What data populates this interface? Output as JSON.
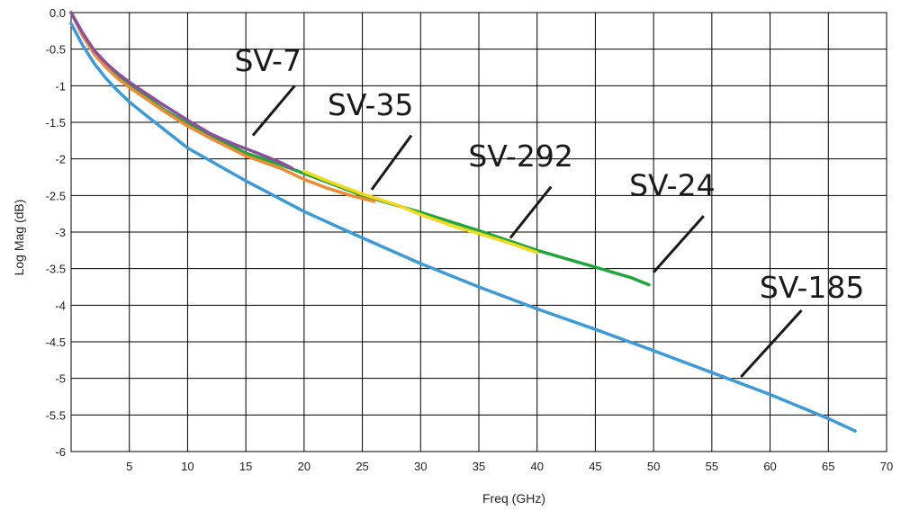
{
  "chart_data": {
    "type": "line",
    "title": "",
    "xlabel": "Freq (GHz)",
    "ylabel": "Log Mag (dB)",
    "xlim": [
      0,
      70
    ],
    "ylim": [
      -6,
      0
    ],
    "grid": true,
    "x_ticks": [
      5,
      10,
      15,
      20,
      25,
      30,
      35,
      40,
      45,
      50,
      55,
      60,
      65,
      70
    ],
    "x_tick_labels": [
      "5",
      "10",
      "15",
      "20",
      "25",
      "30",
      "35",
      "40",
      "45",
      "50",
      "55",
      "60",
      "65",
      "70"
    ],
    "y_ticks": [
      0,
      -0.5,
      -1,
      -1.5,
      -2,
      -2.5,
      -3,
      -3.5,
      -4,
      -4.5,
      -5,
      -5.5,
      -6
    ],
    "y_tick_labels": [
      "0.0",
      "-0.5",
      "-1",
      "-1.5",
      "-2",
      "-2.5",
      "-3",
      "-3.5",
      "-4",
      "-4.5",
      "-5",
      "-5.5",
      "-6"
    ],
    "series": [
      {
        "name": "SV-185",
        "color": "#3d9ad9",
        "x": [
          0,
          1,
          2,
          3,
          4,
          5,
          6,
          8,
          10,
          12,
          15,
          20,
          25,
          30,
          35,
          40,
          45,
          50,
          55,
          60,
          65,
          67.3
        ],
        "y": [
          -0.15,
          -0.45,
          -0.7,
          -0.9,
          -1.07,
          -1.22,
          -1.35,
          -1.6,
          -1.85,
          -2.03,
          -2.3,
          -2.72,
          -3.08,
          -3.43,
          -3.75,
          -4.05,
          -4.33,
          -4.62,
          -4.92,
          -5.22,
          -5.55,
          -5.72
        ]
      },
      {
        "name": "SV-24",
        "color": "#1fa53a",
        "x": [
          0,
          1,
          2,
          3,
          4,
          5,
          6,
          8,
          10,
          12,
          15,
          18,
          20,
          25,
          30,
          35,
          40,
          45,
          48,
          49.6
        ],
        "y": [
          0,
          -0.3,
          -0.55,
          -0.72,
          -0.87,
          -0.99,
          -1.1,
          -1.33,
          -1.52,
          -1.68,
          -1.92,
          -2.08,
          -2.2,
          -2.5,
          -2.73,
          -2.98,
          -3.25,
          -3.48,
          -3.62,
          -3.72
        ]
      },
      {
        "name": "SV-292",
        "color": "#f2d91f",
        "x": [
          20,
          22,
          25,
          28,
          30,
          33,
          35,
          38,
          40
        ],
        "y": [
          -2.17,
          -2.3,
          -2.48,
          -2.63,
          -2.76,
          -2.93,
          -3.02,
          -3.17,
          -3.28
        ]
      },
      {
        "name": "SV-35",
        "color": "#f08b35",
        "x": [
          0,
          1,
          2,
          3,
          4,
          5,
          6,
          8,
          10,
          12,
          15,
          18,
          20,
          22,
          24,
          26
        ],
        "y": [
          0,
          -0.32,
          -0.57,
          -0.75,
          -0.9,
          -1.02,
          -1.13,
          -1.35,
          -1.55,
          -1.72,
          -1.96,
          -2.13,
          -2.28,
          -2.4,
          -2.5,
          -2.58
        ]
      },
      {
        "name": "SV-7",
        "color": "#8b4fa0",
        "x": [
          0,
          1,
          2,
          3,
          4,
          5,
          6,
          8,
          10,
          12,
          14,
          16,
          18,
          19
        ],
        "y": [
          0,
          -0.28,
          -0.52,
          -0.69,
          -0.83,
          -0.95,
          -1.06,
          -1.27,
          -1.47,
          -1.66,
          -1.8,
          -1.92,
          -2.05,
          -2.13
        ]
      }
    ],
    "annotations": [
      {
        "label": "SV-7",
        "text_x": 16.9,
        "text_y": -0.8,
        "line_from": [
          19.2,
          -1.0
        ],
        "line_to": [
          15.6,
          -1.68
        ]
      },
      {
        "label": "SV-35",
        "text_x": 25.7,
        "text_y": -1.4,
        "line_from": [
          29.2,
          -1.68
        ],
        "line_to": [
          25.8,
          -2.42
        ]
      },
      {
        "label": "SV-292",
        "text_x": 38.6,
        "text_y": -2.1,
        "line_from": [
          41.2,
          -2.38
        ],
        "line_to": [
          37.7,
          -3.08
        ]
      },
      {
        "label": "SV-24",
        "text_x": 51.6,
        "text_y": -2.5,
        "line_from": [
          54.3,
          -2.78
        ],
        "line_to": [
          50.0,
          -3.55
        ]
      },
      {
        "label": "SV-185",
        "text_x": 63.6,
        "text_y": -3.9,
        "line_from": [
          62.7,
          -4.07
        ],
        "line_to": [
          57.5,
          -4.98
        ]
      }
    ]
  }
}
